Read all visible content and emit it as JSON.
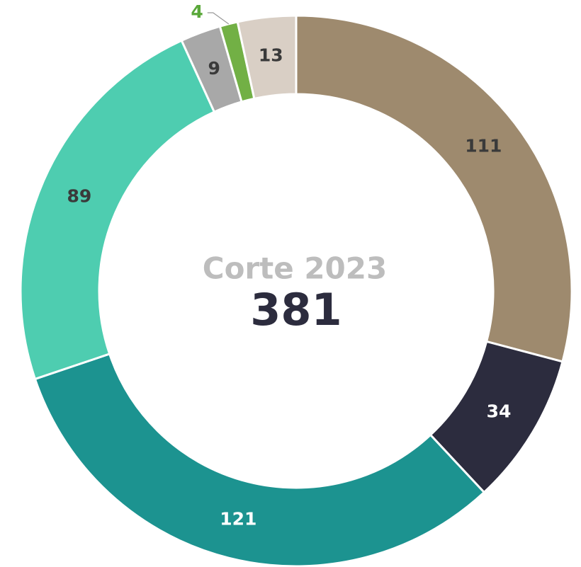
{
  "chart_data": {
    "type": "donut",
    "center_label": "Corte 2023",
    "center_value": 381,
    "values": [
      111,
      34,
      121,
      89,
      9,
      4,
      13
    ],
    "colors": [
      "#9e8a6e",
      "#2c2c3e",
      "#1c9390",
      "#4ecdb0",
      "#a8a8a8",
      "#72b045",
      "#d9cfc5"
    ],
    "label_colors": [
      "#3a3a3a",
      "#ffffff",
      "#ffffff",
      "#3a3a3a",
      "#3a3a3a",
      "#5aa83a",
      "#3a3a3a"
    ]
  }
}
